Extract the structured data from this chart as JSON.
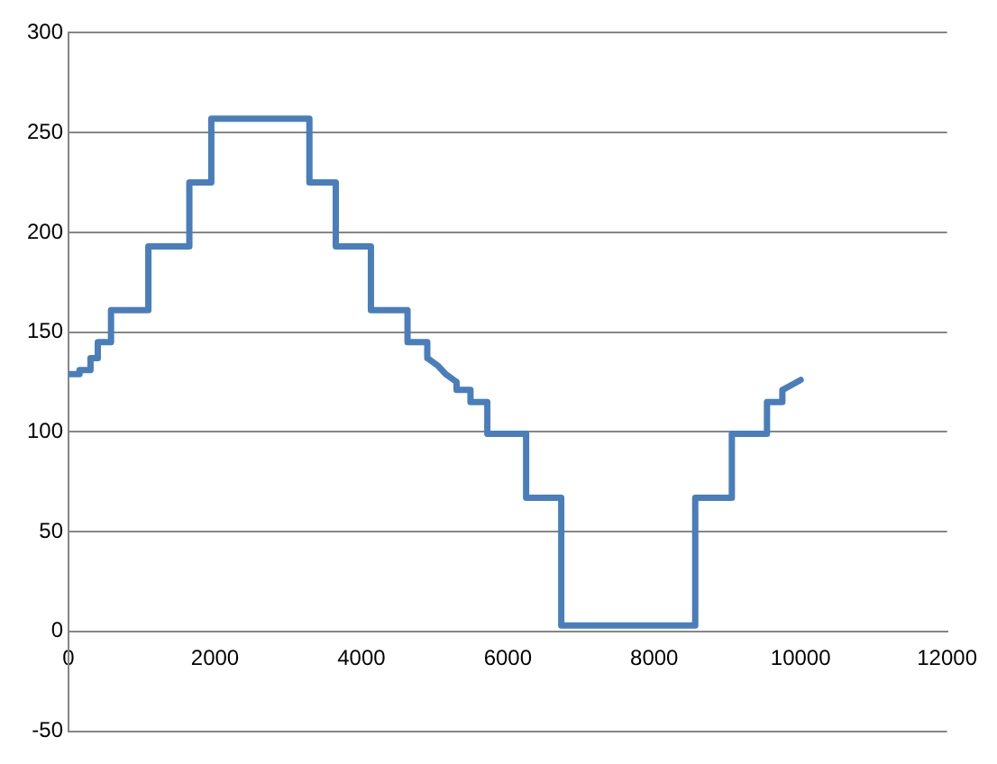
{
  "chart_data": {
    "type": "line",
    "x": [
      0,
      150,
      150,
      300,
      300,
      400,
      400,
      580,
      580,
      1090,
      1090,
      1650,
      1650,
      1950,
      1950,
      3290,
      3290,
      3650,
      3650,
      4130,
      4130,
      4630,
      4630,
      4900,
      4900,
      5050,
      5150,
      5300,
      5300,
      5490,
      5490,
      5720,
      5720,
      6250,
      6250,
      6730,
      6730,
      8560,
      8560,
      9060,
      9060,
      9540,
      9540,
      9750,
      9750,
      9900,
      10000
    ],
    "series": [
      {
        "color": "#4a7ebb",
        "values": [
          129,
          129,
          131,
          131,
          137,
          137,
          145,
          145,
          161,
          161,
          193,
          193,
          225,
          225,
          257,
          257,
          225,
          225,
          193,
          193,
          161,
          161,
          145,
          145,
          137,
          133,
          129,
          125,
          121,
          121,
          115,
          115,
          99,
          99,
          67,
          67,
          3,
          3,
          67,
          67,
          99,
          99,
          115,
          115,
          121,
          124,
          126
        ]
      }
    ],
    "xlim": [
      0,
      12000
    ],
    "xticks": [
      0,
      2000,
      4000,
      6000,
      8000,
      10000,
      12000
    ],
    "ylim": [
      -50,
      300
    ],
    "yticks": [
      -50,
      0,
      50,
      100,
      150,
      200,
      250,
      300
    ],
    "grid": "y",
    "legend": false,
    "marker": "none",
    "line_style": "solid"
  }
}
